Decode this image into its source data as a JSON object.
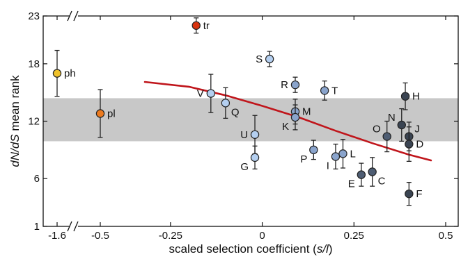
{
  "chart_data": {
    "type": "scatter",
    "xlabel": "scaled selection coefficient (s/l)",
    "ylabel": "dN/dS mean rank",
    "xlabel_parts": [
      "scaled selection coefficient (",
      "s/l",
      ")"
    ],
    "ylabel_parts": [
      "dN/dS",
      " mean rank"
    ],
    "x_axis_break_ticks": [
      "-1.6",
      "-0.5"
    ],
    "x_ticks_main": [
      "-0.25",
      "0",
      "0.25",
      "0.5"
    ],
    "y_ticks": [
      "1",
      "6",
      "12",
      "18",
      "23"
    ],
    "xlim_main": [
      -0.375,
      0.5
    ],
    "ylim": [
      1,
      23
    ],
    "shaded_band": {
      "y_low": 9.9,
      "y_high": 14.4,
      "color": "#c8c8c8"
    },
    "trend_line": {
      "color": "#c0151b",
      "points": [
        [
          -0.32,
          16.1
        ],
        [
          -0.2,
          15.6
        ],
        [
          -0.1,
          14.7
        ],
        [
          0,
          13.6
        ],
        [
          0.1,
          12.4
        ],
        [
          0.2,
          11.0
        ],
        [
          0.3,
          9.7
        ],
        [
          0.4,
          8.5
        ],
        [
          0.46,
          7.9
        ]
      ]
    },
    "colors": {
      "ph": "#f0c22a",
      "pl": "#ec7a1e",
      "tr": "#d8330f",
      "light": "#b4cff0",
      "mid": "#8aa4cc",
      "dark": "#4e5d73",
      "darker": "#3a4452"
    },
    "points": [
      {
        "label": "ph",
        "segment": "break",
        "x": -1.6,
        "y": 17.0,
        "err": 2.4,
        "color_key": "ph",
        "label_side": "right"
      },
      {
        "label": "pl",
        "segment": "break",
        "x": -0.5,
        "y": 12.8,
        "err": 2.5,
        "color_key": "pl",
        "label_side": "right"
      },
      {
        "label": "tr",
        "segment": "main",
        "x": -0.18,
        "y": 22.0,
        "err": 0.8,
        "color_key": "tr",
        "label_side": "right"
      },
      {
        "label": "S",
        "segment": "main",
        "x": 0.02,
        "y": 18.5,
        "err": 0.8,
        "color_key": "light",
        "label_side": "left"
      },
      {
        "label": "R",
        "segment": "main",
        "x": 0.09,
        "y": 15.8,
        "err": 0.8,
        "color_key": "mid",
        "label_side": "left"
      },
      {
        "label": "T",
        "segment": "main",
        "x": 0.17,
        "y": 15.2,
        "err": 1.0,
        "color_key": "mid",
        "label_side": "right"
      },
      {
        "label": "V",
        "segment": "main",
        "x": -0.14,
        "y": 14.9,
        "err": 2.0,
        "color_key": "light",
        "label_side": "left"
      },
      {
        "label": "Q",
        "segment": "main",
        "x": -0.1,
        "y": 13.9,
        "err": 1.6,
        "color_key": "light",
        "label_side": "below-right"
      },
      {
        "label": "M",
        "segment": "main",
        "x": 0.09,
        "y": 13.0,
        "err": 1.3,
        "color_key": "mid",
        "label_side": "right"
      },
      {
        "label": "K",
        "segment": "main",
        "x": 0.09,
        "y": 12.4,
        "err": 1.3,
        "color_key": "mid",
        "label_side": "below-left"
      },
      {
        "label": "U",
        "segment": "main",
        "x": -0.02,
        "y": 10.6,
        "err": 2.0,
        "color_key": "light",
        "label_side": "left"
      },
      {
        "label": "G",
        "segment": "main",
        "x": -0.02,
        "y": 8.2,
        "err": 1.2,
        "color_key": "light",
        "label_side": "below-left"
      },
      {
        "label": "P",
        "segment": "main",
        "x": 0.14,
        "y": 9.0,
        "err": 1.0,
        "color_key": "mid",
        "label_side": "below-left"
      },
      {
        "label": "L",
        "segment": "main",
        "x": 0.22,
        "y": 8.6,
        "err": 1.5,
        "color_key": "mid",
        "label_side": "right"
      },
      {
        "label": "I",
        "segment": "main",
        "x": 0.2,
        "y": 8.3,
        "err": 1.3,
        "color_key": "mid",
        "label_side": "below-left"
      },
      {
        "label": "E",
        "segment": "main",
        "x": 0.27,
        "y": 6.4,
        "err": 1.2,
        "color_key": "dark",
        "label_side": "below-left"
      },
      {
        "label": "C",
        "segment": "main",
        "x": 0.3,
        "y": 6.7,
        "err": 1.5,
        "color_key": "dark",
        "label_side": "below-right"
      },
      {
        "label": "H",
        "segment": "main",
        "x": 0.39,
        "y": 14.6,
        "err": 1.4,
        "color_key": "darker",
        "label_side": "right"
      },
      {
        "label": "N",
        "segment": "main",
        "x": 0.38,
        "y": 11.6,
        "err": 1.7,
        "color_key": "darker",
        "label_side": "above-left"
      },
      {
        "label": "O",
        "segment": "main",
        "x": 0.34,
        "y": 10.4,
        "err": 1.6,
        "color_key": "dark",
        "label_side": "above-left"
      },
      {
        "label": "J",
        "segment": "main",
        "x": 0.4,
        "y": 10.4,
        "err": 1.5,
        "color_key": "darker",
        "label_side": "above-right"
      },
      {
        "label": "D",
        "segment": "main",
        "x": 0.4,
        "y": 9.6,
        "err": 1.8,
        "color_key": "darker",
        "label_side": "right"
      },
      {
        "label": "F",
        "segment": "main",
        "x": 0.4,
        "y": 4.4,
        "err": 1.2,
        "color_key": "darker",
        "label_side": "right"
      }
    ]
  }
}
